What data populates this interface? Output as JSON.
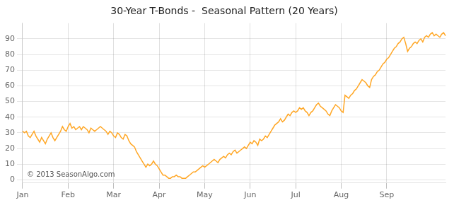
{
  "chart_data": {
    "type": "line",
    "title": "30-Year T-Bonds -  Seasonal Pattern (20 Years)",
    "annotations": [
      "© 2013 SeasonAlgo.com"
    ],
    "categories": [
      "Jan",
      null,
      null,
      null,
      null,
      null,
      null,
      null,
      null,
      null,
      null,
      null,
      null,
      null,
      null,
      null,
      null,
      null,
      null,
      null,
      null,
      null,
      null,
      null,
      "Feb",
      null,
      null,
      null,
      null,
      null,
      null,
      null,
      null,
      null,
      null,
      null,
      null,
      null,
      null,
      null,
      null,
      null,
      null,
      null,
      null,
      null,
      null,
      null,
      "Mar",
      null,
      null,
      null,
      null,
      null,
      null,
      null,
      null,
      null,
      null,
      null,
      null,
      null,
      null,
      null,
      null,
      null,
      null,
      null,
      null,
      null,
      null,
      null,
      "Apr",
      null,
      null,
      null,
      null,
      null,
      null,
      null,
      null,
      null,
      null,
      null,
      null,
      null,
      null,
      null,
      null,
      null,
      null,
      null,
      null,
      null,
      null,
      null,
      "May",
      null,
      null,
      null,
      null,
      null,
      null,
      null,
      null,
      null,
      null,
      null,
      null,
      null,
      null,
      null,
      null,
      null,
      null,
      null,
      null,
      null,
      null,
      null,
      "Jun",
      null,
      null,
      null,
      null,
      null,
      null,
      null,
      null,
      null,
      null,
      null,
      null,
      null,
      null,
      null,
      null,
      null,
      null,
      null,
      null,
      null,
      null,
      null,
      "Jul",
      null,
      null,
      null,
      null,
      null,
      null,
      null,
      null,
      null,
      null,
      null,
      null,
      null,
      null,
      null,
      null,
      null,
      null,
      null,
      null,
      null,
      null,
      null,
      "Aug",
      null,
      null,
      null,
      null,
      null,
      null,
      null,
      null,
      null,
      null,
      null,
      null,
      null,
      null,
      null,
      null,
      null,
      null,
      null,
      null,
      null,
      null,
      null,
      "Sep",
      null,
      null,
      null,
      null,
      null,
      null,
      null,
      null,
      null,
      null,
      null,
      null,
      null,
      null,
      null,
      null,
      null,
      null,
      null,
      null,
      null,
      null,
      null,
      null,
      null,
      null,
      null,
      null,
      null,
      null,
      null
    ],
    "values": [
      31,
      30,
      31,
      28,
      27,
      29,
      31,
      28,
      26,
      24,
      27,
      25,
      23,
      26,
      28,
      30,
      27,
      25,
      27,
      29,
      31,
      34,
      32,
      31,
      34,
      36,
      33,
      34,
      32,
      33,
      34,
      32,
      34,
      33,
      32,
      30,
      33,
      32,
      31,
      32,
      33,
      34,
      33,
      32,
      31,
      29,
      31,
      30,
      28,
      27,
      30,
      29,
      27,
      26,
      29,
      28,
      25,
      23,
      22,
      21,
      18,
      16,
      14,
      12,
      10,
      8,
      10,
      9,
      10,
      12,
      10,
      9,
      7,
      5,
      3,
      3,
      2,
      1,
      1,
      2,
      2,
      3,
      2,
      2,
      1,
      1,
      1,
      2,
      3,
      4,
      5,
      5,
      6,
      7,
      8,
      9,
      8,
      9,
      10,
      11,
      12,
      13,
      12,
      11,
      13,
      14,
      15,
      14,
      16,
      17,
      16,
      18,
      19,
      17,
      18,
      19,
      20,
      21,
      20,
      22,
      24,
      23,
      25,
      24,
      22,
      26,
      25,
      26,
      28,
      27,
      29,
      31,
      33,
      35,
      36,
      37,
      39,
      37,
      38,
      40,
      42,
      41,
      43,
      44,
      43,
      44,
      46,
      45,
      46,
      44,
      43,
      41,
      43,
      44,
      46,
      48,
      49,
      47,
      46,
      45,
      44,
      42,
      41,
      44,
      46,
      48,
      47,
      46,
      44,
      43,
      54,
      53,
      52,
      54,
      55,
      57,
      58,
      60,
      62,
      64,
      63,
      62,
      60,
      59,
      64,
      66,
      67,
      69,
      70,
      72,
      74,
      75,
      77,
      78,
      80,
      82,
      84,
      85,
      87,
      88,
      90,
      91,
      87,
      82,
      84,
      85,
      87,
      88,
      87,
      89,
      90,
      88,
      91,
      92,
      91,
      93,
      94,
      92,
      93,
      92,
      91,
      93,
      94,
      92
    ],
    "color": "#FFA726",
    "ylim": [
      -2,
      100
    ],
    "yticks": [
      0,
      10,
      20,
      30,
      40,
      50,
      60,
      70,
      80,
      90
    ],
    "grid": true
  }
}
